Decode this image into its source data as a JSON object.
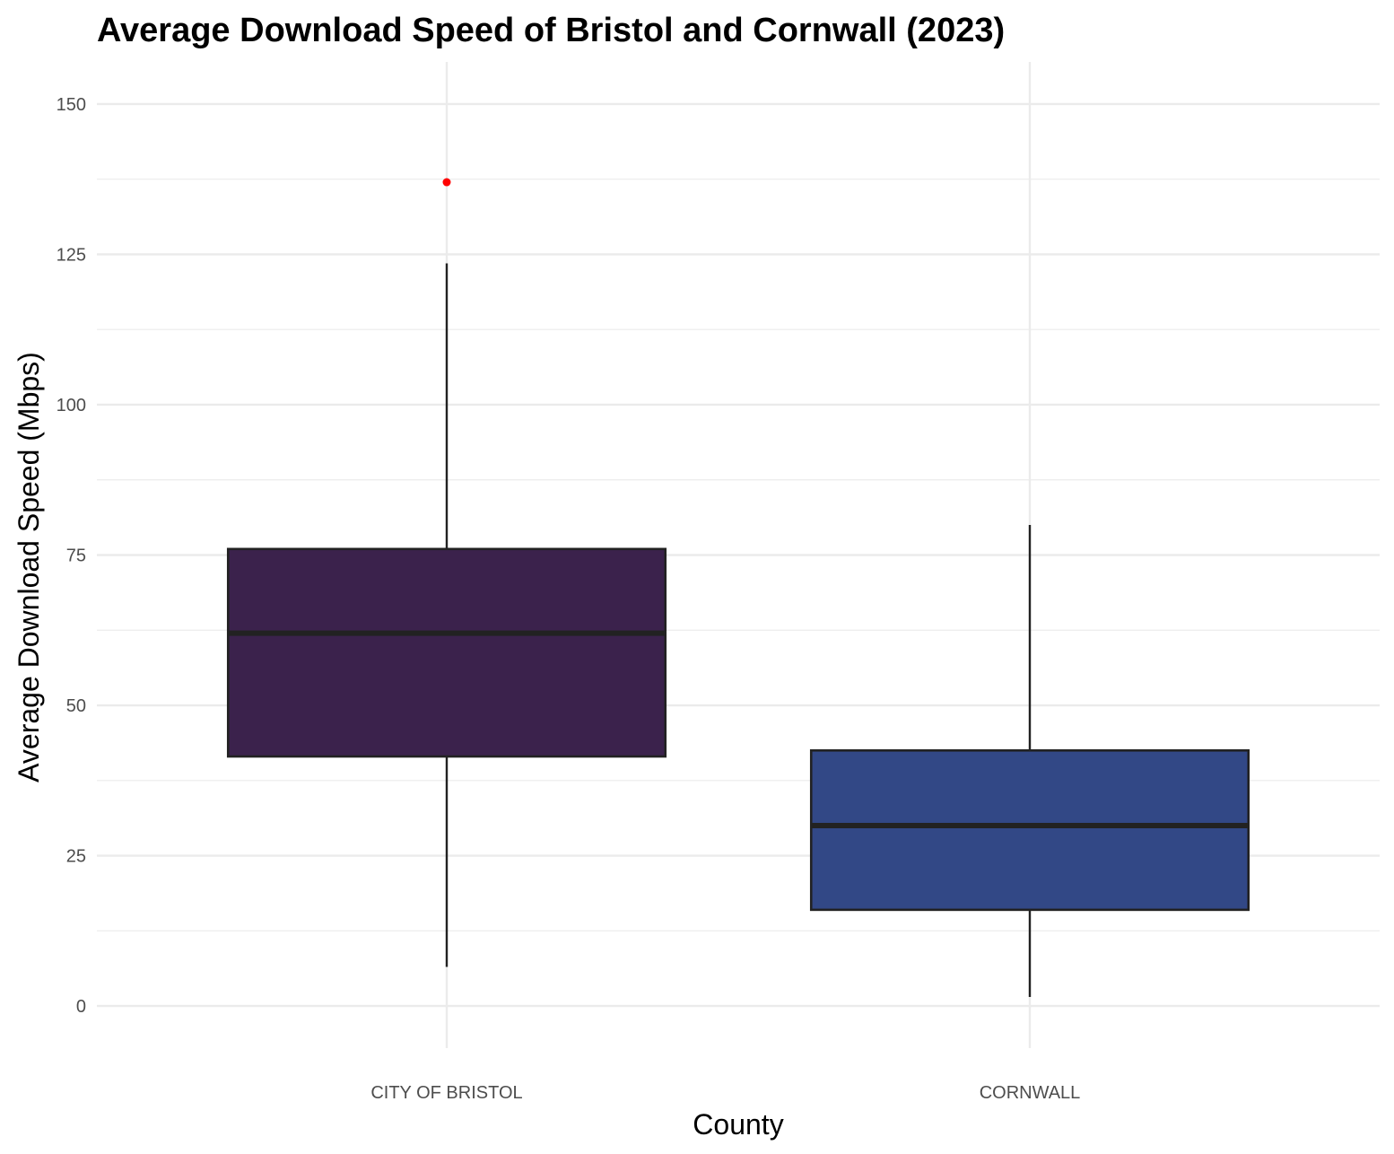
{
  "chart_data": {
    "type": "boxplot",
    "title": "Average Download Speed of Bristol and Cornwall (2023)",
    "xlabel": "County",
    "ylabel": "Average Download Speed (Mbps)",
    "ylim": [
      -7,
      157
    ],
    "yticks": [
      0,
      25,
      50,
      75,
      100,
      125,
      150
    ],
    "grid": true,
    "legend": "none",
    "categories": [
      "CITY OF BRISTOL",
      "CORNWALL"
    ],
    "boxes": [
      {
        "category": "CITY OF BRISTOL",
        "whisker_low": 6.5,
        "q1": 41.5,
        "median": 62.0,
        "q3": 76.0,
        "whisker_high": 123.5,
        "outliers": [
          137.0
        ],
        "fill": "#3b224c"
      },
      {
        "category": "CORNWALL",
        "whisker_low": 1.5,
        "q1": 16.0,
        "median": 30.0,
        "q3": 42.5,
        "whisker_high": 80.0,
        "outliers": [],
        "fill": "#324886"
      }
    ],
    "outlier_color": "#ff0000"
  }
}
